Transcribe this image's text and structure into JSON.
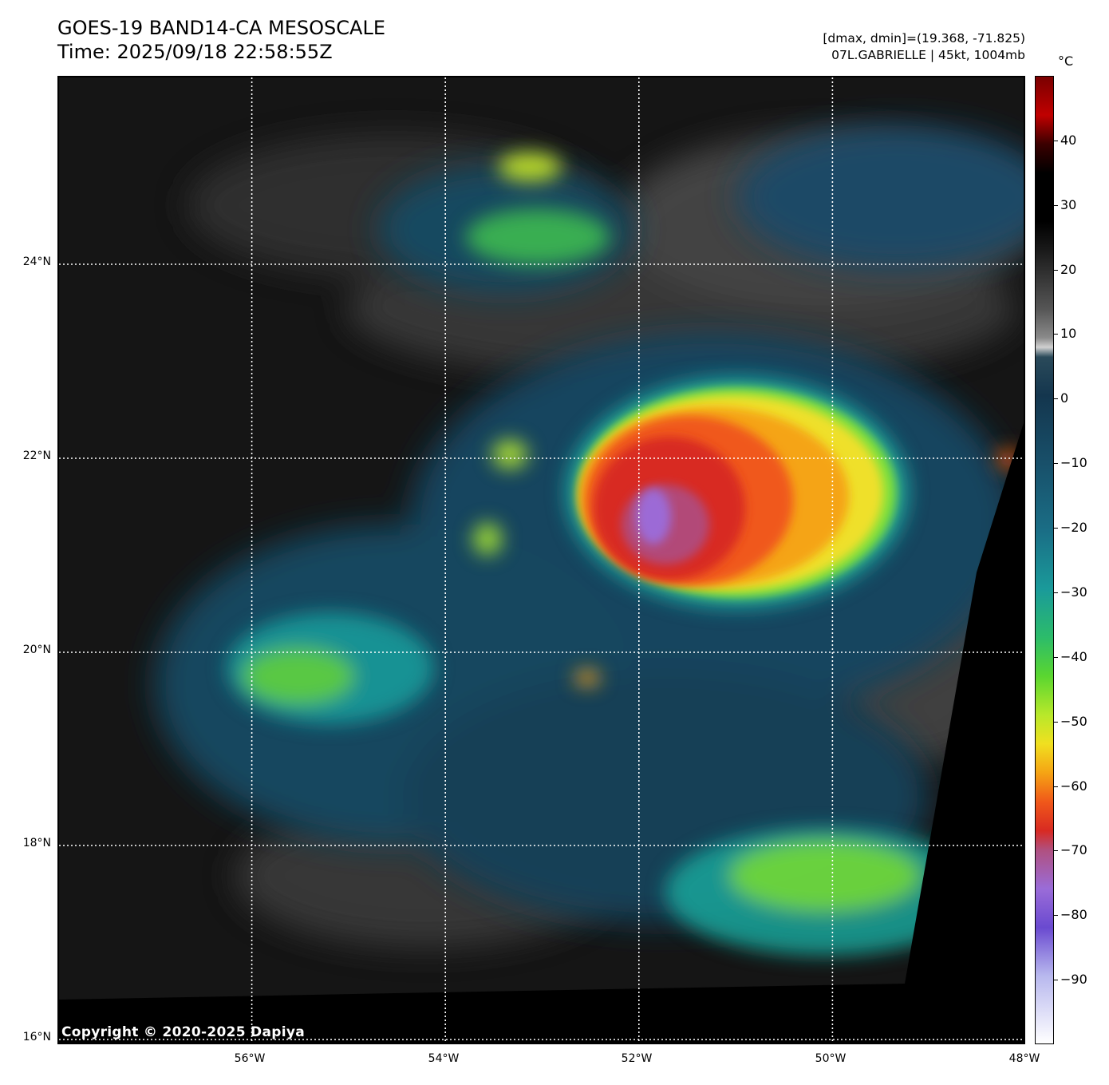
{
  "header": {
    "title_line1": "GOES-19 BAND14-CA MESOSCALE",
    "title_line2": "Time: 2025/09/18 22:58:55Z",
    "info_line1": "[dmax, dmin]=(19.368, -71.825)",
    "info_line2": "07L.GABRIELLE | 45kt, 1004mb"
  },
  "map": {
    "lat_labels": [
      "24°N",
      "22°N",
      "20°N",
      "18°N",
      "16°N"
    ],
    "lon_labels": [
      "56°W",
      "54°W",
      "52°W",
      "50°W",
      "48°W"
    ],
    "lat_range": [
      16,
      26
    ],
    "lon_range": [
      -58,
      -48
    ],
    "grid": "dotted white",
    "copyright": "Copyright © 2020-2025 Dapiya"
  },
  "colorbar": {
    "unit": "°C",
    "ticks": [
      "40",
      "30",
      "20",
      "10",
      "0",
      "−10",
      "−20",
      "−30",
      "−40",
      "−50",
      "−60",
      "−70",
      "−80",
      "−90"
    ],
    "tick_values": [
      40,
      30,
      20,
      10,
      0,
      -10,
      -20,
      -30,
      -40,
      -50,
      -60,
      -70,
      -80,
      -90
    ],
    "range": [
      -100,
      50
    ]
  },
  "colors": {
    "background_land_sea": "#141414",
    "cloud_grey": "#555555",
    "cool_cloud_blue": "#1f5a7a",
    "teal": "#1aa0a0",
    "green": "#6be02a",
    "yellow": "#f0e020",
    "orange": "#f59a10",
    "red": "#e02a1a",
    "purple": "#9a6cd8"
  }
}
